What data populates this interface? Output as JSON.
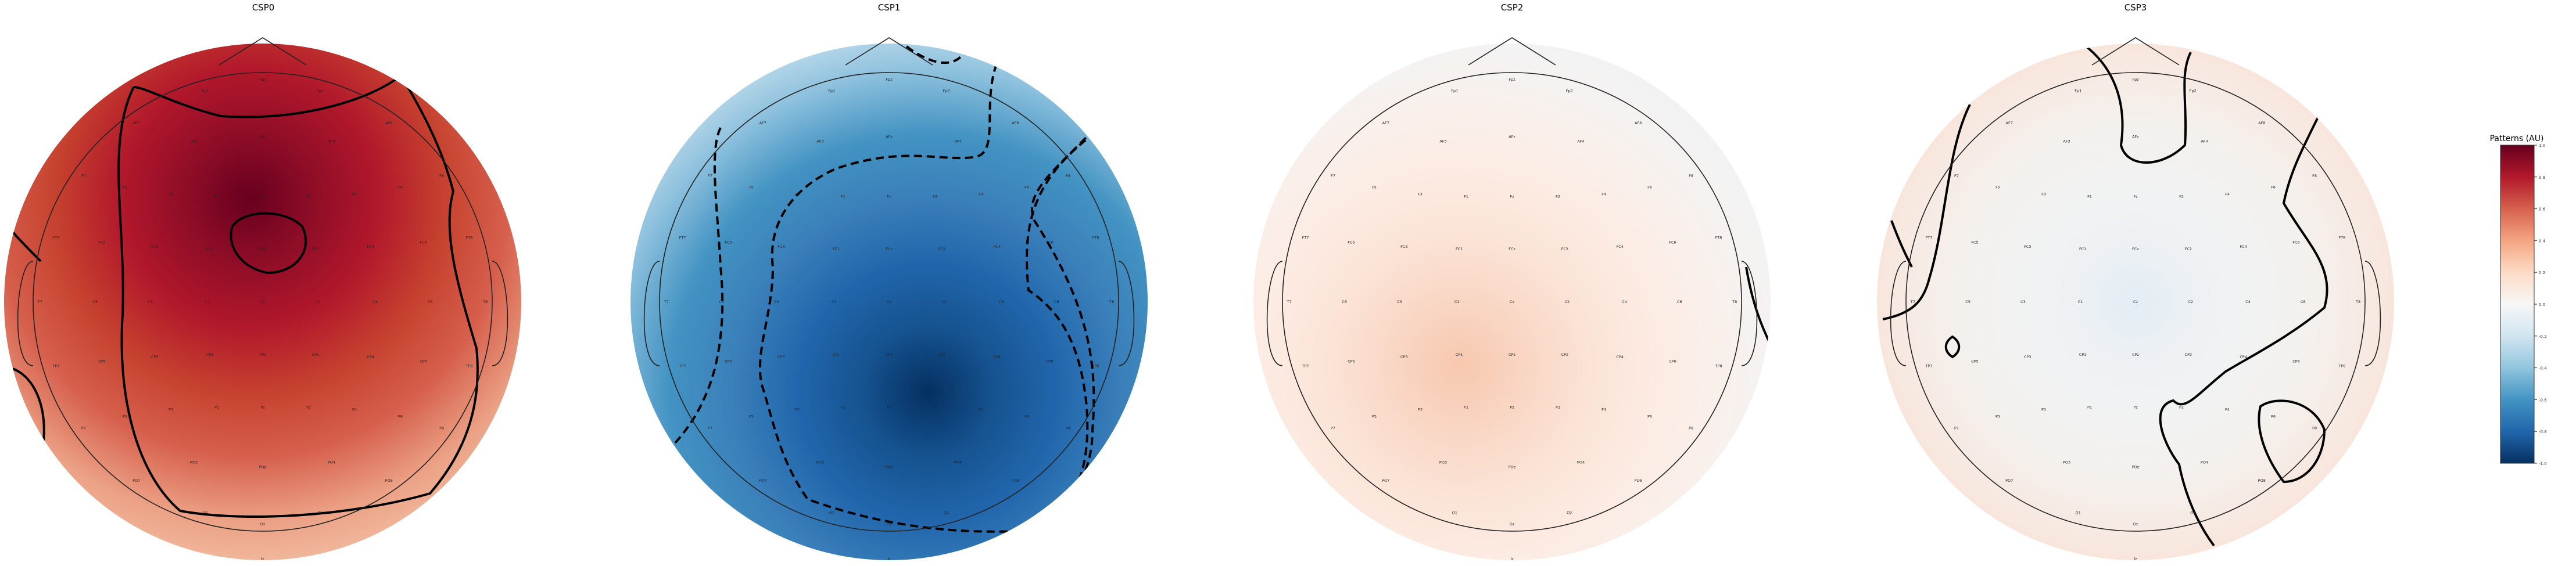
{
  "topomaps": [
    {
      "title": "CSP0",
      "colors": [
        "#67001f",
        "#8f0d27",
        "#b2182b",
        "#c6412f",
        "#d6604d",
        "#eba185",
        "#f5c4a9"
      ],
      "weights": "positive"
    },
    {
      "title": "CSP1",
      "colors": [
        "#053061",
        "#15528f",
        "#2166ac",
        "#3a7fb9",
        "#4393c3",
        "#8fc2de",
        "#d1e5f0"
      ],
      "weights": "negative"
    },
    {
      "title": "CSP2",
      "colors": [
        "#f7c8ae",
        "#f9d6c4",
        "#fbe3d6",
        "#fcebe2",
        "#f9f0eb",
        "#f3f3f3",
        "#f0f0f0"
      ],
      "weights": "weak-positive"
    },
    {
      "title": "CSP3",
      "colors": [
        "#e2edf4",
        "#eef1f4",
        "#f2f2f2",
        "#f5efeb",
        "#f8e6dc",
        "#f1f1f1",
        "#f3f3f3"
      ],
      "weights": "near-zero"
    }
  ],
  "channels": [
    "Fp1",
    "Fpz",
    "Fp2",
    "AF7",
    "AF3",
    "AFz",
    "AF4",
    "AF8",
    "F7",
    "F5",
    "F3",
    "F1",
    "Fz",
    "F2",
    "F4",
    "F6",
    "F8",
    "FT7",
    "FC5",
    "FC3",
    "FC1",
    "FCz",
    "FC2",
    "FC4",
    "FC6",
    "FT8",
    "T7",
    "C5",
    "C3",
    "C1",
    "Cz",
    "C2",
    "C4",
    "C6",
    "T8",
    "TP7",
    "CP5",
    "CP3",
    "CP1",
    "CPz",
    "CP2",
    "CP4",
    "CP6",
    "TP8",
    "P7",
    "P5",
    "P3",
    "P1",
    "Pz",
    "P2",
    "P4",
    "P6",
    "P8",
    "PO7",
    "PO3",
    "POz",
    "PO4",
    "PO8",
    "O1",
    "Oz",
    "O2",
    "Iz"
  ],
  "colorbar": {
    "title": "Patterns (AU)",
    "ticks": [
      "1.0",
      "0.8",
      "0.6",
      "0.4",
      "0.2",
      "0.0",
      "-0.2",
      "-0.4",
      "-0.6",
      "-0.8",
      "-1.0"
    ],
    "gradient": [
      "#67001f",
      "#b2182b",
      "#d6604d",
      "#f4a582",
      "#fddbc7",
      "#f7f7f7",
      "#d1e5f0",
      "#92c5de",
      "#4393c3",
      "#2166ac",
      "#053061"
    ]
  }
}
